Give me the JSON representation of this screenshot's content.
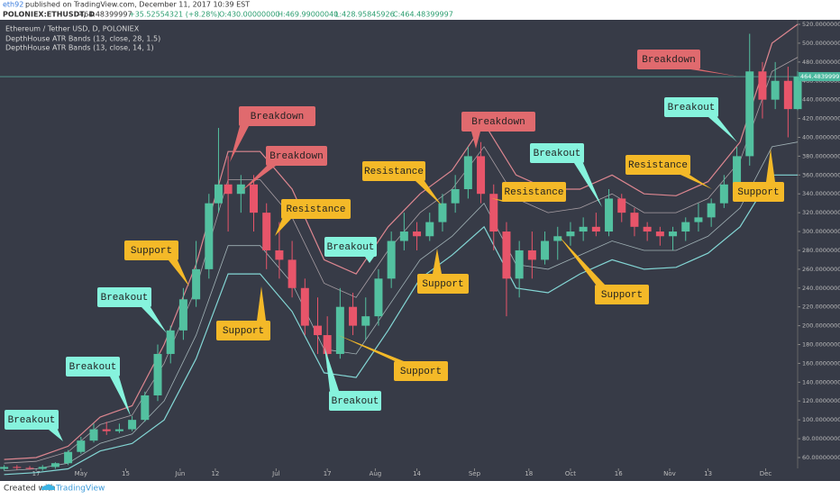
{
  "header": {
    "user": "eth92",
    "published": "published on TradingView.com, December 11, 2017 10:39 EST",
    "symbol": "POLONIEX:ETHUSDT, D",
    "price": "464.48399997",
    "change": "+35.52554321 (+8.28%)",
    "open": "O:430.00000000",
    "high": "H:469.99000040",
    "low": "L:428.95845926",
    "close": "C:464.48399997"
  },
  "chart_data": {
    "type": "candlestick",
    "title": "Ethereum / Tether USD, D, POLONIEX",
    "x": [
      -10,
      -6,
      -2,
      2,
      6,
      10,
      14,
      18,
      22,
      26,
      30,
      34,
      38,
      42,
      46,
      50,
      54,
      57,
      60,
      64,
      68,
      72,
      76,
      80,
      84,
      88,
      91,
      95,
      99,
      103,
      107,
      111,
      115,
      119,
      123,
      127,
      131,
      135,
      139,
      143,
      147,
      151,
      155,
      159,
      163,
      167,
      171,
      175,
      179,
      183,
      187,
      191,
      195,
      199,
      203,
      207,
      211,
      215,
      219,
      223,
      227,
      231,
      235,
      238
    ],
    "open": [
      48,
      50,
      49,
      48,
      50,
      54,
      66,
      78,
      90,
      88,
      90,
      100,
      126,
      170,
      195,
      228,
      260,
      330,
      350,
      340,
      350,
      320,
      280,
      270,
      240,
      200,
      190,
      170,
      220,
      200,
      210,
      250,
      290,
      300,
      295,
      310,
      330,
      345,
      380,
      340,
      300,
      250,
      280,
      270,
      290,
      295,
      300,
      305,
      300,
      335,
      320,
      305,
      300,
      295,
      300,
      310,
      315,
      330,
      350,
      380,
      470,
      440,
      460,
      430
    ],
    "high": [
      52,
      52,
      51,
      52,
      55,
      68,
      82,
      96,
      98,
      96,
      104,
      130,
      180,
      200,
      240,
      290,
      340,
      410,
      380,
      360,
      360,
      330,
      310,
      290,
      250,
      230,
      210,
      240,
      235,
      230,
      260,
      300,
      320,
      310,
      320,
      340,
      360,
      390,
      395,
      350,
      310,
      290,
      300,
      300,
      305,
      310,
      315,
      320,
      345,
      340,
      325,
      310,
      305,
      305,
      315,
      330,
      335,
      360,
      390,
      510,
      480,
      480,
      475,
      469.9900004
    ],
    "low": [
      46,
      47,
      47,
      46,
      48,
      52,
      64,
      76,
      84,
      86,
      88,
      98,
      120,
      160,
      185,
      220,
      250,
      320,
      300,
      320,
      300,
      260,
      250,
      230,
      190,
      170,
      155,
      165,
      190,
      185,
      200,
      240,
      280,
      280,
      290,
      300,
      320,
      335,
      330,
      280,
      210,
      230,
      250,
      265,
      270,
      285,
      290,
      295,
      295,
      310,
      295,
      290,
      285,
      280,
      290,
      300,
      305,
      325,
      345,
      370,
      420,
      430,
      400,
      428.95845926
    ],
    "close": [
      50,
      49,
      48,
      50,
      54,
      66,
      78,
      90,
      88,
      90,
      100,
      126,
      170,
      195,
      228,
      260,
      330,
      350,
      340,
      350,
      320,
      280,
      270,
      240,
      200,
      190,
      170,
      220,
      200,
      210,
      250,
      290,
      300,
      295,
      310,
      330,
      345,
      380,
      340,
      300,
      250,
      280,
      270,
      290,
      295,
      300,
      305,
      300,
      335,
      320,
      305,
      300,
      295,
      300,
      310,
      315,
      330,
      350,
      380,
      470,
      440,
      460,
      430,
      464.48399997
    ],
    "up_color": "#53c1a0",
    "down_color": "#e8556a",
    "band_x": [
      -10,
      0,
      10,
      20,
      30,
      40,
      50,
      60,
      70,
      80,
      90,
      100,
      110,
      120,
      130,
      140,
      150,
      160,
      170,
      180,
      190,
      200,
      210,
      220,
      230,
      238
    ],
    "bands": [
      {
        "name": "DepthHouse ATR Bands (13, close, 28, 1.5)",
        "color": "#f08f98",
        "lower_color": "#8ce8e4",
        "upper": [
          58,
          60,
          72,
          103,
          115,
          180,
          265,
          385,
          385,
          345,
          270,
          255,
          305,
          340,
          365,
          415,
          360,
          345,
          345,
          360,
          340,
          338,
          353,
          395,
          500,
          520
        ],
        "lower": [
          42,
          44,
          48,
          67,
          75,
          100,
          165,
          255,
          255,
          215,
          150,
          145,
          195,
          250,
          275,
          305,
          240,
          235,
          255,
          270,
          260,
          262,
          277,
          305,
          360,
          360
        ]
      },
      {
        "name": "DepthHouse ATR Bands (13, close, 14, 1)",
        "color": "#d9c9cc",
        "lower_color": "#cfe6e6",
        "upper": [
          54,
          56,
          66,
          95,
          105,
          160,
          240,
          355,
          355,
          315,
          245,
          230,
          280,
          320,
          345,
          390,
          335,
          320,
          325,
          340,
          320,
          320,
          335,
          375,
          470,
          485
        ],
        "lower": [
          46,
          48,
          54,
          75,
          85,
          120,
          190,
          285,
          285,
          245,
          175,
          170,
          220,
          270,
          295,
          330,
          265,
          260,
          275,
          290,
          280,
          280,
          295,
          325,
          390,
          395
        ]
      }
    ],
    "last_price_label": "464.48399997",
    "xlim": [
      -11.3,
      238
    ],
    "ylim": [
      48.5,
      524.8
    ],
    "xticks": [
      {
        "value": 0,
        "label": "17"
      },
      {
        "value": 14,
        "label": "May"
      },
      {
        "value": 28,
        "label": "15"
      },
      {
        "value": 45,
        "label": "Jun"
      },
      {
        "value": 56,
        "label": "12"
      },
      {
        "value": 75,
        "label": "Jul"
      },
      {
        "value": 91,
        "label": "17"
      },
      {
        "value": 106,
        "label": "Aug"
      },
      {
        "value": 119,
        "label": "14"
      },
      {
        "value": 137,
        "label": "Sep"
      },
      {
        "value": 154,
        "label": "18"
      },
      {
        "value": 167,
        "label": "Oct"
      },
      {
        "value": 182,
        "label": "16"
      },
      {
        "value": 198,
        "label": "Nov"
      },
      {
        "value": 210,
        "label": "13"
      },
      {
        "value": 228,
        "label": "Dec"
      }
    ],
    "yticks": [
      {
        "value": 60,
        "label": "60.00000000"
      },
      {
        "value": 80,
        "label": "80.00000000"
      },
      {
        "value": 100,
        "label": "100.00000000"
      },
      {
        "value": 120,
        "label": "120.00000000"
      },
      {
        "value": 140,
        "label": "140.00000000"
      },
      {
        "value": 160,
        "label": "160.00000000"
      },
      {
        "value": 180,
        "label": "180.00000000"
      },
      {
        "value": 200,
        "label": "200.00000000"
      },
      {
        "value": 220,
        "label": "220.00000000"
      },
      {
        "value": 240,
        "label": "240.00000000"
      },
      {
        "value": 260,
        "label": "260.00000000"
      },
      {
        "value": 280,
        "label": "280.00000000"
      },
      {
        "value": 300,
        "label": "300.00000000"
      },
      {
        "value": 320,
        "label": "320.00000000"
      },
      {
        "value": 340,
        "label": "340.00000000"
      },
      {
        "value": 360,
        "label": "360.00000000"
      },
      {
        "value": 380,
        "label": "380.00000000"
      },
      {
        "value": 400,
        "label": "400.00000000"
      },
      {
        "value": 420,
        "label": "420.00000000"
      },
      {
        "value": 440,
        "label": "440.00000000"
      },
      {
        "value": 460,
        "label": "460.00000000"
      },
      {
        "value": 480,
        "label": "480.00000000"
      },
      {
        "value": 500,
        "label": "500.00000000"
      },
      {
        "value": 520,
        "label": "520.00000000"
      }
    ],
    "annotations": [
      {
        "text": "Breakout",
        "color": "#86f3dd"
      },
      {
        "text": "Breakout",
        "color": "#86f3dd"
      },
      {
        "text": "Breakout",
        "color": "#86f3dd"
      },
      {
        "text": "Support",
        "color": "#f4b928"
      },
      {
        "text": "Breakdown",
        "color": "#e06a6e"
      },
      {
        "text": "Breakdown",
        "color": "#e06a6e"
      },
      {
        "text": "Resistance",
        "color": "#f4b928"
      },
      {
        "text": "Support",
        "color": "#f4b928"
      },
      {
        "text": "Breakout",
        "color": "#86f3dd"
      },
      {
        "text": "Breakout",
        "color": "#86f3dd"
      },
      {
        "text": "Support",
        "color": "#f4b928"
      },
      {
        "text": "Resistance",
        "color": "#f4b928"
      },
      {
        "text": "Support",
        "color": "#f4b928"
      },
      {
        "text": "Breakdown",
        "color": "#e06a6e"
      },
      {
        "text": "Resistance",
        "color": "#f4b928"
      },
      {
        "text": "Breakout",
        "color": "#86f3dd"
      },
      {
        "text": "Support",
        "color": "#f4b928"
      },
      {
        "text": "Resistance",
        "color": "#f4b928"
      },
      {
        "text": "Breakdown",
        "color": "#e06a6e"
      },
      {
        "text": "Breakout",
        "color": "#86f3dd"
      },
      {
        "text": "Support",
        "color": "#f4b928"
      }
    ]
  },
  "footer": {
    "created": "Created with",
    "brand": "TradingView"
  }
}
